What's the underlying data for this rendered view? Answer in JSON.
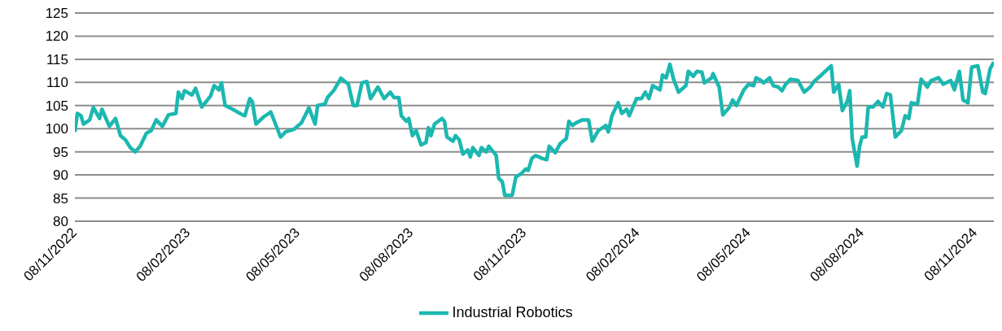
{
  "chart_data": {
    "type": "line",
    "x": [
      "2022-11-08",
      "2022-11-10",
      "2022-11-13",
      "2022-11-15",
      "2022-11-20",
      "2022-11-23",
      "2022-11-28",
      "2022-11-30",
      "2022-12-06",
      "2022-12-11",
      "2022-12-15",
      "2022-12-19",
      "2022-12-23",
      "2022-12-27",
      "2022-12-31",
      "2023-01-05",
      "2023-01-09",
      "2023-01-13",
      "2023-01-18",
      "2023-01-23",
      "2023-01-29",
      "2023-01-31",
      "2023-02-03",
      "2023-02-05",
      "2023-02-11",
      "2023-02-14",
      "2023-02-19",
      "2023-02-26",
      "2023-03-01",
      "2023-03-05",
      "2023-03-07",
      "2023-03-10",
      "2023-03-16",
      "2023-03-24",
      "2023-03-26",
      "2023-03-30",
      "2023-04-01",
      "2023-04-04",
      "2023-04-10",
      "2023-04-16",
      "2023-04-24",
      "2023-04-28",
      "2023-05-05",
      "2023-05-11",
      "2023-05-17",
      "2023-05-22",
      "2023-05-24",
      "2023-05-30",
      "2023-06-01",
      "2023-06-06",
      "2023-06-12",
      "2023-06-18",
      "2023-06-22",
      "2023-06-25",
      "2023-06-29",
      "2023-07-03",
      "2023-07-06",
      "2023-07-12",
      "2023-07-17",
      "2023-07-22",
      "2023-07-25",
      "2023-07-29",
      "2023-07-31",
      "2023-08-04",
      "2023-08-06",
      "2023-08-09",
      "2023-08-12",
      "2023-08-16",
      "2023-08-20",
      "2023-08-22",
      "2023-08-24",
      "2023-08-27",
      "2023-09-02",
      "2023-09-04",
      "2023-09-06",
      "2023-09-11",
      "2023-09-13",
      "2023-09-16",
      "2023-09-19",
      "2023-09-23",
      "2023-09-25",
      "2023-09-27",
      "2023-10-02",
      "2023-10-04",
      "2023-10-08",
      "2023-10-10",
      "2023-10-16",
      "2023-10-18",
      "2023-10-21",
      "2023-10-23",
      "2023-10-29",
      "2023-11-01",
      "2023-11-05",
      "2023-11-09",
      "2023-11-11",
      "2023-11-14",
      "2023-11-17",
      "2023-11-22",
      "2023-11-26",
      "2023-11-28",
      "2023-12-03",
      "2023-12-07",
      "2023-12-12",
      "2023-12-14",
      "2023-12-17",
      "2023-12-20",
      "2023-12-25",
      "2023-12-30",
      "2024-01-02",
      "2024-01-07",
      "2024-01-13",
      "2024-01-15",
      "2024-01-18",
      "2024-01-23",
      "2024-01-26",
      "2024-01-30",
      "2024-02-01",
      "2024-02-04",
      "2024-02-07",
      "2024-02-11",
      "2024-02-14",
      "2024-02-17",
      "2024-02-20",
      "2024-02-26",
      "2024-02-28",
      "2024-03-02",
      "2024-03-05",
      "2024-03-08",
      "2024-03-12",
      "2024-03-18",
      "2024-03-20",
      "2024-03-24",
      "2024-03-27",
      "2024-03-31",
      "2024-04-02",
      "2024-04-08",
      "2024-04-09",
      "2024-04-14",
      "2024-04-17",
      "2024-04-22",
      "2024-04-25",
      "2024-04-28",
      "2024-05-04",
      "2024-05-08",
      "2024-05-12",
      "2024-05-14",
      "2024-05-18",
      "2024-05-20",
      "2024-05-25",
      "2024-05-28",
      "2024-06-01",
      "2024-06-04",
      "2024-06-07",
      "2024-06-11",
      "2024-06-17",
      "2024-06-22",
      "2024-06-27",
      "2024-06-30",
      "2024-07-06",
      "2024-07-14",
      "2024-07-16",
      "2024-07-20",
      "2024-07-23",
      "2024-07-27",
      "2024-07-29",
      "2024-07-31",
      "2024-08-04",
      "2024-08-06",
      "2024-08-08",
      "2024-08-11",
      "2024-08-13",
      "2024-08-17",
      "2024-08-21",
      "2024-08-25",
      "2024-08-28",
      "2024-08-31",
      "2024-09-04",
      "2024-09-09",
      "2024-09-12",
      "2024-09-15",
      "2024-09-17",
      "2024-09-22",
      "2024-09-25",
      "2024-09-30",
      "2024-10-03",
      "2024-10-09",
      "2024-10-13",
      "2024-10-19",
      "2024-10-22",
      "2024-10-26",
      "2024-10-29",
      "2024-11-02",
      "2024-11-05",
      "2024-11-10",
      "2024-11-14",
      "2024-11-16",
      "2024-11-20",
      "2024-11-23"
    ],
    "series": [
      {
        "name": "Industrial Robotics",
        "color": "#1bb8b0",
        "values": [
          99.3,
          103.3,
          102.8,
          101,
          101.9,
          104.6,
          102.2,
          104.2,
          100.5,
          102.2,
          98.5,
          97.6,
          95.9,
          95,
          96.2,
          99,
          99.6,
          101.9,
          100.5,
          103,
          103.3,
          107.9,
          106.5,
          108.2,
          107.3,
          108.7,
          104.7,
          107,
          109.3,
          108.4,
          109.9,
          105,
          104.2,
          103,
          102.8,
          106.5,
          105.9,
          101,
          102.5,
          103.6,
          98.2,
          99.3,
          99.9,
          101.3,
          104.5,
          101,
          105,
          105.3,
          106.7,
          108.2,
          110.9,
          109.6,
          105,
          105,
          109.9,
          110.2,
          106.5,
          109,
          106.5,
          107.9,
          106.7,
          106.7,
          102.8,
          101.6,
          102.2,
          98.5,
          99.6,
          96.5,
          97,
          100.2,
          98.5,
          101,
          102.2,
          101.6,
          98.2,
          97.3,
          98.5,
          97.6,
          94.5,
          95.4,
          93.9,
          95.9,
          94.2,
          95.9,
          95,
          96.2,
          94.2,
          89.3,
          88.5,
          85.6,
          85.6,
          89.6,
          90.2,
          91.3,
          91,
          93.6,
          94.2,
          93.6,
          93.3,
          96.2,
          94.8,
          96.8,
          97.9,
          101.6,
          100.7,
          101.3,
          101.9,
          101.9,
          97.3,
          99.6,
          100.7,
          99.3,
          102.8,
          105.6,
          103.3,
          104.2,
          102.8,
          104.7,
          106.5,
          106.5,
          107.9,
          106.5,
          109.3,
          108.4,
          111.6,
          111,
          113.9,
          110.7,
          107.9,
          109.3,
          112.4,
          111.3,
          112.4,
          112.2,
          109.9,
          111,
          111.9,
          109,
          103,
          104.5,
          106.2,
          105,
          108.4,
          109.6,
          109.3,
          111,
          110.4,
          109.9,
          111,
          109.3,
          109,
          108.2,
          109.6,
          110.7,
          110.4,
          107.9,
          109,
          110.2,
          111.6,
          113.6,
          107.9,
          109.6,
          103.9,
          105.9,
          108.2,
          97.9,
          91.9,
          96.2,
          98.2,
          98.2,
          104.7,
          104.7,
          105.9,
          104.7,
          107.6,
          107.3,
          98.2,
          99.6,
          102.8,
          102.2,
          105.6,
          105.3,
          110.7,
          109,
          110.4,
          111,
          109.6,
          110.4,
          108.4,
          112.4,
          106.2,
          105.6,
          113.3,
          113.6,
          107.9,
          107.6,
          113,
          114.4
        ]
      }
    ],
    "xlim": [
      "2022-11-08",
      "2024-11-23"
    ],
    "xticks": [
      {
        "value": "2022-11-08",
        "label": "08/11/2022"
      },
      {
        "value": "2023-02-08",
        "label": "08/02/2023"
      },
      {
        "value": "2023-05-08",
        "label": "08/05/2023"
      },
      {
        "value": "2023-08-08",
        "label": "08/08/2023"
      },
      {
        "value": "2023-11-08",
        "label": "08/11/2023"
      },
      {
        "value": "2024-02-08",
        "label": "08/02/2024"
      },
      {
        "value": "2024-05-08",
        "label": "08/05/2024"
      },
      {
        "value": "2024-08-08",
        "label": "08/08/2024"
      },
      {
        "value": "2024-11-08",
        "label": "08/11/2024"
      }
    ],
    "ylim": [
      80,
      125
    ],
    "yticks": [
      80,
      85,
      90,
      95,
      100,
      105,
      110,
      115,
      120,
      125
    ],
    "grid": "y",
    "legend": "bottom",
    "marker": "none",
    "line_style": "solid"
  }
}
